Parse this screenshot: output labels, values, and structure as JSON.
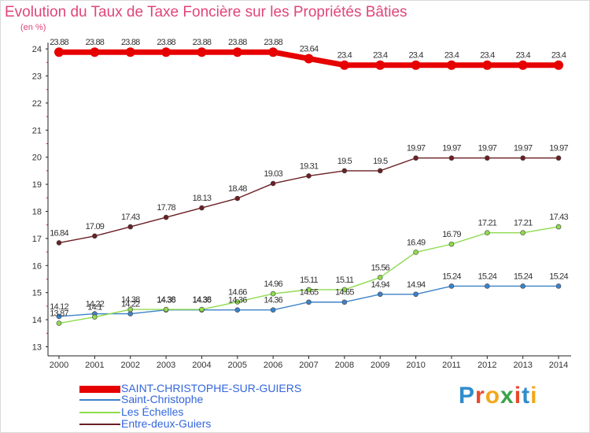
{
  "title": "Evolution du Taux de Taxe Foncière sur les Propriétés Bâties",
  "unit": "(en %)",
  "logo": "Proxiti",
  "chart_data": {
    "type": "line",
    "title": "Evolution du Taux de Taxe Foncière sur les Propriétés Bâties",
    "ylabel": "(en %)",
    "xlabel": "",
    "categories": [
      "2000",
      "2001",
      "2002",
      "2003",
      "2004",
      "2005",
      "2006",
      "2007",
      "2008",
      "2009",
      "2010",
      "2011",
      "2012",
      "2013",
      "2014"
    ],
    "ylim": [
      13,
      24
    ],
    "yticks": [
      "13",
      "14",
      "15",
      "16",
      "17",
      "18",
      "19",
      "20",
      "21",
      "22",
      "23",
      "24"
    ],
    "series": [
      {
        "name": "SAINT-CHRISTOPHE-SUR-GUIERS",
        "color": "#e60000",
        "values": [
          23.88,
          23.88,
          23.88,
          23.88,
          23.88,
          23.88,
          23.88,
          23.64,
          23.4,
          23.4,
          23.4,
          23.4,
          23.4,
          23.4,
          23.4
        ],
        "labels": [
          "23.88",
          "23.88",
          "23.88",
          "23.88",
          "23.88",
          "23.88",
          "23.88",
          "23.64",
          "23.4",
          "23.4",
          "23.4",
          "23.4",
          "23.4",
          "23.4",
          "23.4"
        ]
      },
      {
        "name": "Saint-Christophe",
        "color": "#3c82c8",
        "values": [
          14.12,
          14.22,
          14.22,
          14.36,
          14.36,
          14.36,
          14.36,
          14.65,
          14.65,
          14.94,
          14.94,
          15.24,
          15.24,
          15.24,
          15.24
        ],
        "labels": [
          "14.12",
          "14.22",
          "14.22",
          "14.36",
          "14.36",
          "14.36",
          "14.36",
          "14.65",
          "14.65",
          "14.94",
          "14.94",
          "15.24",
          "15.24",
          "15.24",
          "15.24"
        ]
      },
      {
        "name": "Les Échelles",
        "color": "#8fdb4f",
        "values": [
          13.87,
          14.1,
          14.38,
          14.38,
          14.38,
          14.66,
          14.96,
          15.11,
          15.11,
          15.56,
          16.49,
          16.79,
          17.21,
          17.21,
          17.43
        ],
        "labels": [
          "13.87",
          "14.1",
          "14.38",
          "14.38",
          "14.38",
          "14.66",
          "14.96",
          "15.11",
          "15.11",
          "15.56",
          "16.49",
          "16.79",
          "17.21",
          "17.21",
          "17.43"
        ]
      },
      {
        "name": "Entre-deux-Guiers",
        "color": "#6b1f24",
        "values": [
          16.84,
          17.09,
          17.43,
          17.78,
          18.13,
          18.48,
          19.03,
          19.31,
          19.5,
          19.5,
          19.97,
          19.97,
          19.97,
          19.97,
          19.97
        ],
        "labels": [
          "16.84",
          "17.09",
          "17.43",
          "17.78",
          "18.13",
          "18.48",
          "19.03",
          "19.31",
          "19.5",
          "19.5",
          "19.97",
          "19.97",
          "19.97",
          "19.97",
          "19.97"
        ]
      }
    ],
    "legend": {
      "position": "bottom-left",
      "entries": [
        "SAINT-CHRISTOPHE-SUR-GUIERS",
        "Saint-Christophe",
        "Les Échelles",
        "Entre-deux-Guiers"
      ],
      "text_color": "#3366dd"
    },
    "grid": false
  }
}
